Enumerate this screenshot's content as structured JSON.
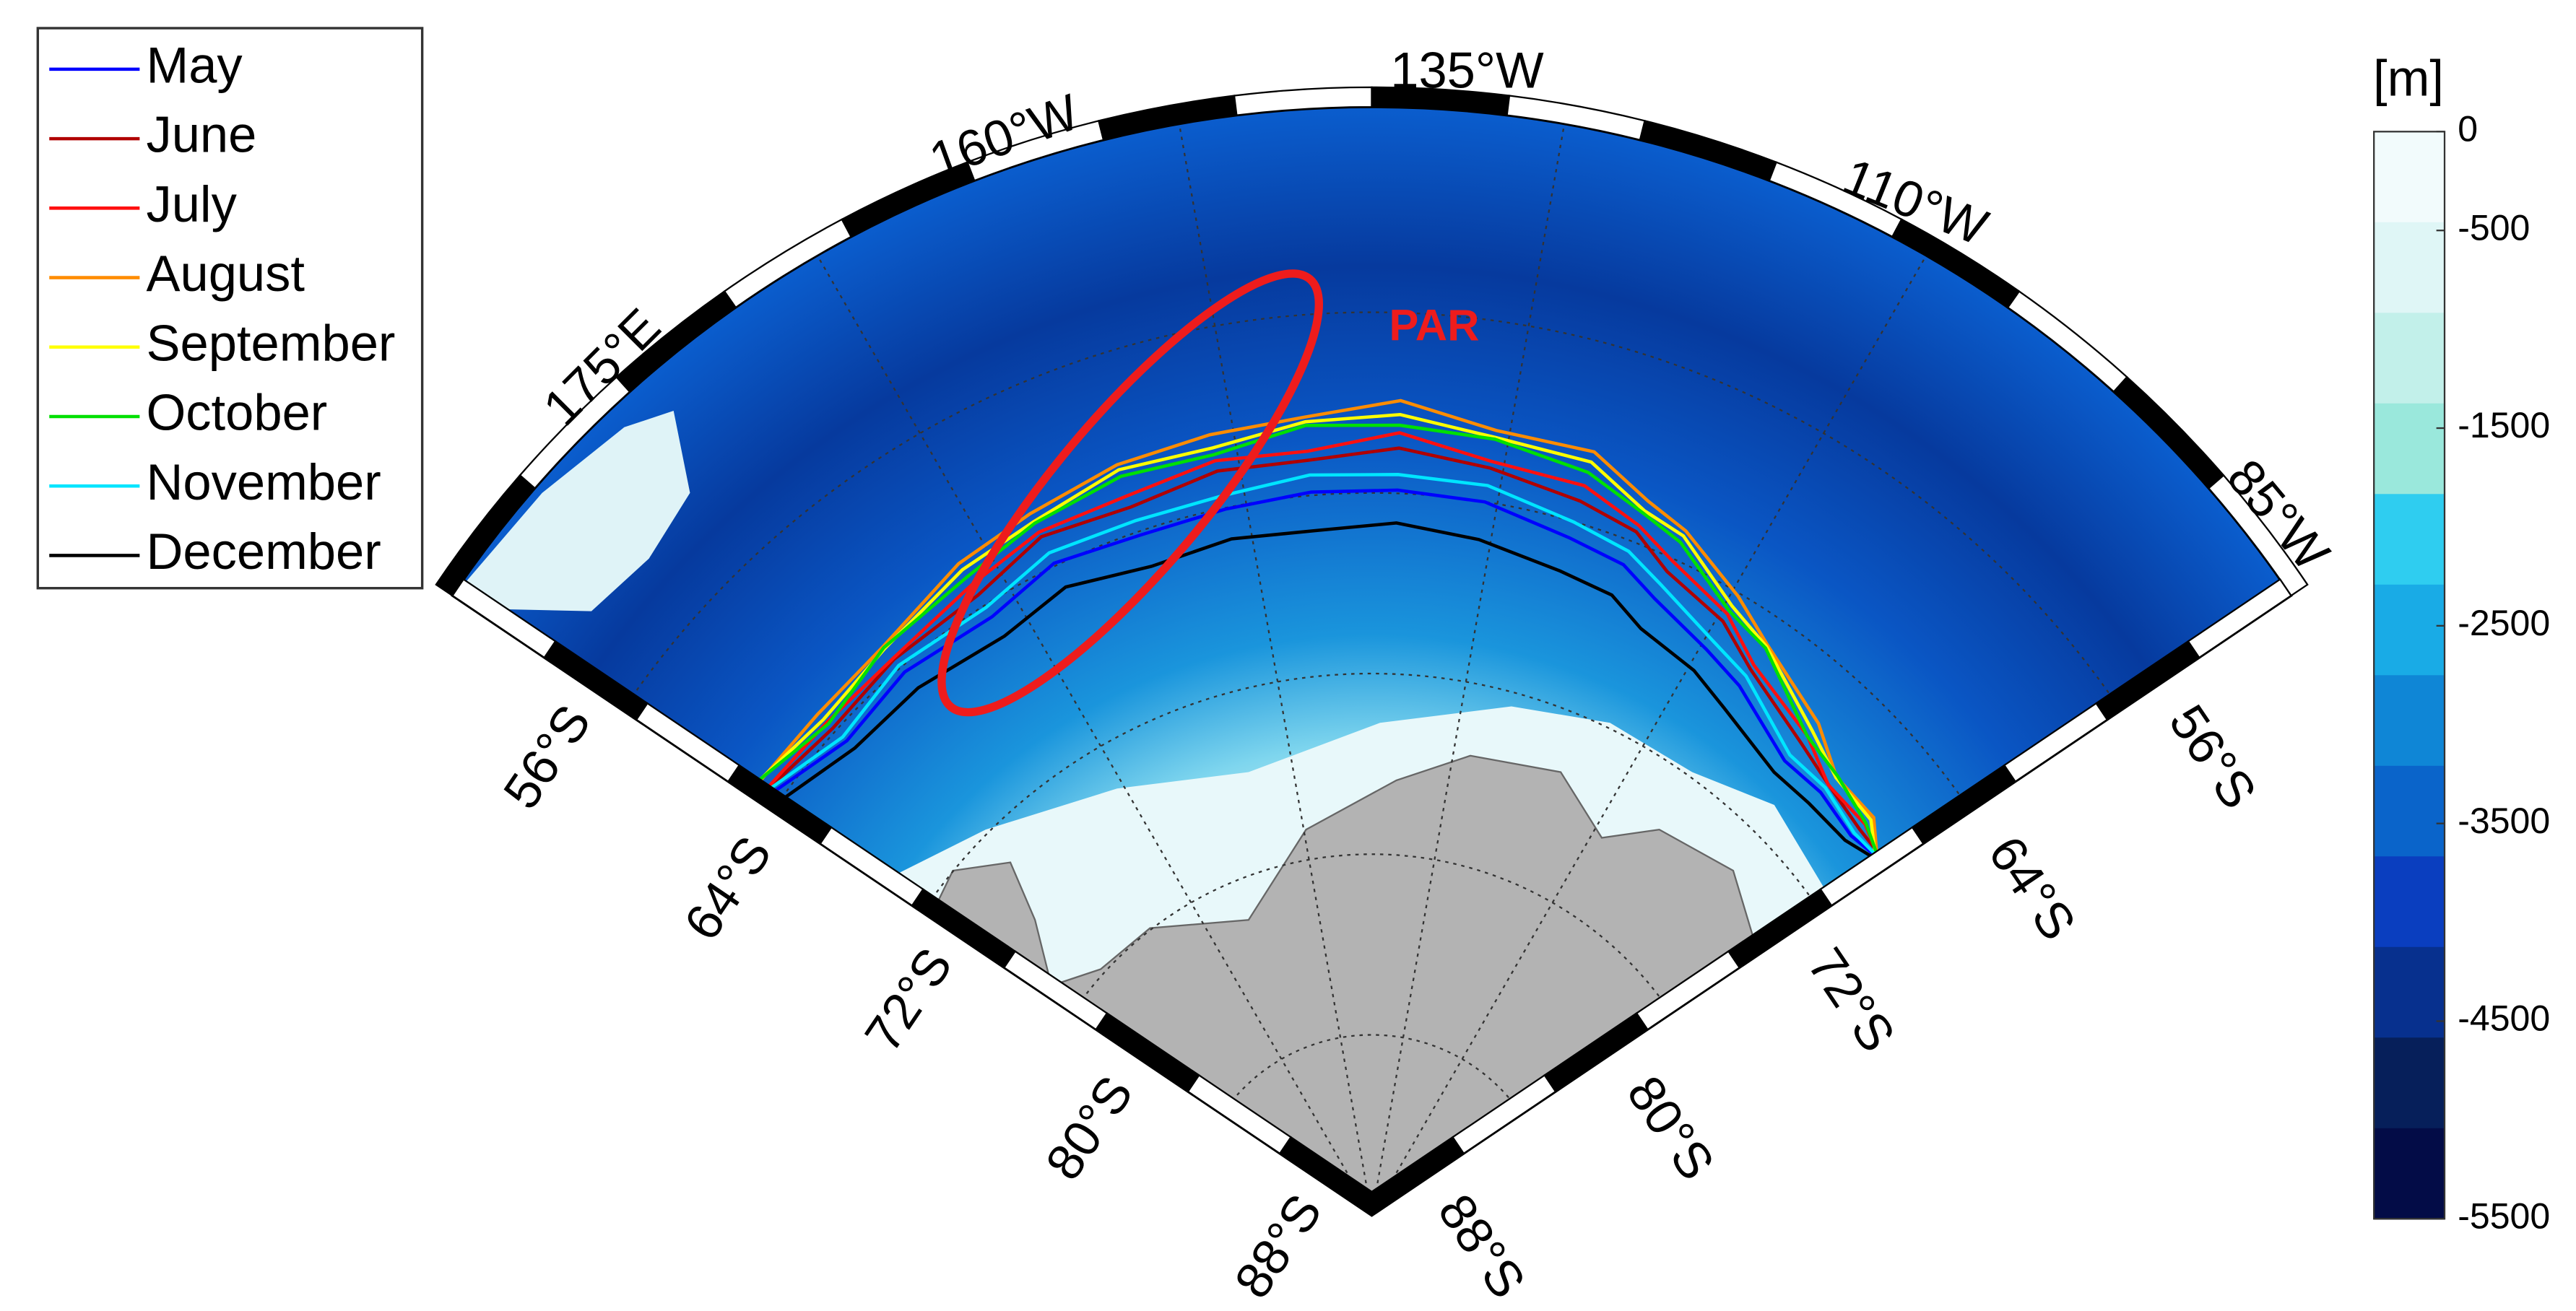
{
  "legend": {
    "series": [
      {
        "name": "May",
        "color": "#0000ff"
      },
      {
        "name": "June",
        "color": "#b00000"
      },
      {
        "name": "July",
        "color": "#ff1010"
      },
      {
        "name": "August",
        "color": "#ff8c00"
      },
      {
        "name": "September",
        "color": "#ffff00"
      },
      {
        "name": "October",
        "color": "#00e000"
      },
      {
        "name": "November",
        "color": "#00e5ff"
      },
      {
        "name": "December",
        "color": "#000000"
      }
    ]
  },
  "longitude_labels": [
    "175°E",
    "160°W",
    "135°W",
    "110°W",
    "85°W"
  ],
  "latitude_labels_left": [
    "56°S",
    "64°S",
    "72°S",
    "80°S",
    "88°S"
  ],
  "latitude_labels_right": [
    "56°S",
    "64°S",
    "72°S",
    "80°S",
    "88°S"
  ],
  "annotation": "PAR",
  "colorbar": {
    "unit": "[m]",
    "clim": [
      -5500,
      0
    ],
    "ticks": [
      0,
      -500,
      -1500,
      -2500,
      -3500,
      -4500,
      -5500
    ],
    "colors": [
      "#f2fbfc",
      "#dff6f6",
      "#c2f0ea",
      "#9ae8dc",
      "#2fcdf0",
      "#19abe6",
      "#0f86d6",
      "#0a64ca",
      "#0a3ebf",
      "#07308e",
      "#061f5a",
      "#030c47"
    ]
  }
}
